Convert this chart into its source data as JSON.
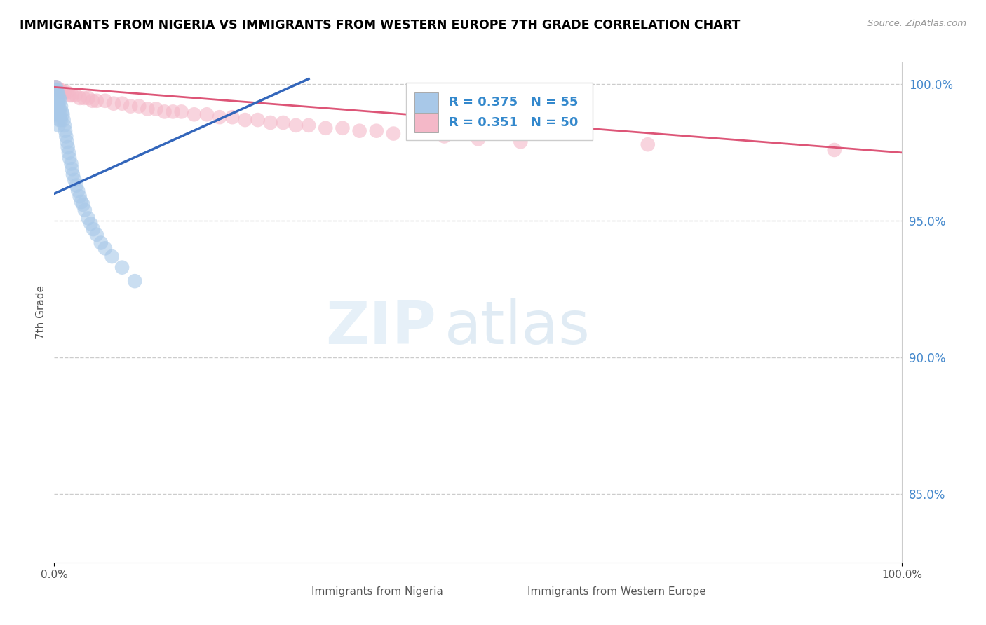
{
  "title": "IMMIGRANTS FROM NIGERIA VS IMMIGRANTS FROM WESTERN EUROPE 7TH GRADE CORRELATION CHART",
  "source": "Source: ZipAtlas.com",
  "ylabel": "7th Grade",
  "legend_blue_label": "Immigrants from Nigeria",
  "legend_pink_label": "Immigrants from Western Europe",
  "R_blue": 0.375,
  "N_blue": 55,
  "R_pink": 0.351,
  "N_pink": 50,
  "blue_color": "#a8c8e8",
  "pink_color": "#f4b8c8",
  "blue_line_color": "#3366bb",
  "pink_line_color": "#dd5577",
  "xmin": 0.0,
  "xmax": 1.0,
  "ymin": 0.825,
  "ymax": 1.008,
  "yticks": [
    0.85,
    0.9,
    0.95,
    1.0
  ],
  "ytick_labels": [
    "85.0%",
    "90.0%",
    "95.0%",
    "100.0%"
  ],
  "xtick_vals": [
    0.0,
    1.0
  ],
  "xtick_labels": [
    "0.0%",
    "100.0%"
  ],
  "blue_scatter_x": [
    0.0,
    0.001,
    0.001,
    0.001,
    0.001,
    0.002,
    0.002,
    0.002,
    0.002,
    0.002,
    0.003,
    0.003,
    0.003,
    0.004,
    0.004,
    0.005,
    0.005,
    0.005,
    0.005,
    0.006,
    0.006,
    0.006,
    0.007,
    0.007,
    0.008,
    0.008,
    0.009,
    0.01,
    0.011,
    0.012,
    0.013,
    0.014,
    0.015,
    0.016,
    0.017,
    0.018,
    0.02,
    0.021,
    0.022,
    0.024,
    0.026,
    0.028,
    0.03,
    0.032,
    0.034,
    0.036,
    0.04,
    0.043,
    0.046,
    0.05,
    0.055,
    0.06,
    0.068,
    0.08,
    0.095
  ],
  "blue_scatter_y": [
    0.996,
    0.998,
    0.997,
    0.994,
    0.993,
    0.999,
    0.996,
    0.993,
    0.99,
    0.989,
    0.998,
    0.995,
    0.99,
    0.997,
    0.993,
    0.996,
    0.993,
    0.989,
    0.985,
    0.995,
    0.991,
    0.987,
    0.994,
    0.989,
    0.992,
    0.987,
    0.99,
    0.989,
    0.987,
    0.985,
    0.983,
    0.981,
    0.979,
    0.977,
    0.975,
    0.973,
    0.971,
    0.969,
    0.967,
    0.965,
    0.963,
    0.961,
    0.959,
    0.957,
    0.956,
    0.954,
    0.951,
    0.949,
    0.947,
    0.945,
    0.942,
    0.94,
    0.937,
    0.933,
    0.928
  ],
  "pink_scatter_x": [
    0.001,
    0.002,
    0.003,
    0.004,
    0.005,
    0.006,
    0.007,
    0.008,
    0.01,
    0.012,
    0.015,
    0.018,
    0.021,
    0.025,
    0.03,
    0.035,
    0.04,
    0.045,
    0.05,
    0.06,
    0.07,
    0.08,
    0.09,
    0.1,
    0.11,
    0.12,
    0.13,
    0.14,
    0.15,
    0.165,
    0.18,
    0.195,
    0.21,
    0.225,
    0.24,
    0.255,
    0.27,
    0.285,
    0.3,
    0.32,
    0.34,
    0.36,
    0.38,
    0.4,
    0.43,
    0.46,
    0.5,
    0.55,
    0.7,
    0.92
  ],
  "pink_scatter_y": [
    0.999,
    0.999,
    0.998,
    0.998,
    0.998,
    0.998,
    0.998,
    0.997,
    0.997,
    0.997,
    0.997,
    0.996,
    0.996,
    0.996,
    0.995,
    0.995,
    0.995,
    0.994,
    0.994,
    0.994,
    0.993,
    0.993,
    0.992,
    0.992,
    0.991,
    0.991,
    0.99,
    0.99,
    0.99,
    0.989,
    0.989,
    0.988,
    0.988,
    0.987,
    0.987,
    0.986,
    0.986,
    0.985,
    0.985,
    0.984,
    0.984,
    0.983,
    0.983,
    0.982,
    0.982,
    0.981,
    0.98,
    0.979,
    0.978,
    0.976
  ],
  "blue_line_x": [
    0.0,
    0.3
  ],
  "blue_line_y": [
    0.96,
    1.002
  ],
  "pink_line_x": [
    0.0,
    1.0
  ],
  "pink_line_y": [
    0.999,
    0.975
  ],
  "watermark_zip": "ZIP",
  "watermark_atlas": "atlas",
  "background_color": "#ffffff",
  "grid_color": "#cccccc",
  "grid_linestyle": "--"
}
